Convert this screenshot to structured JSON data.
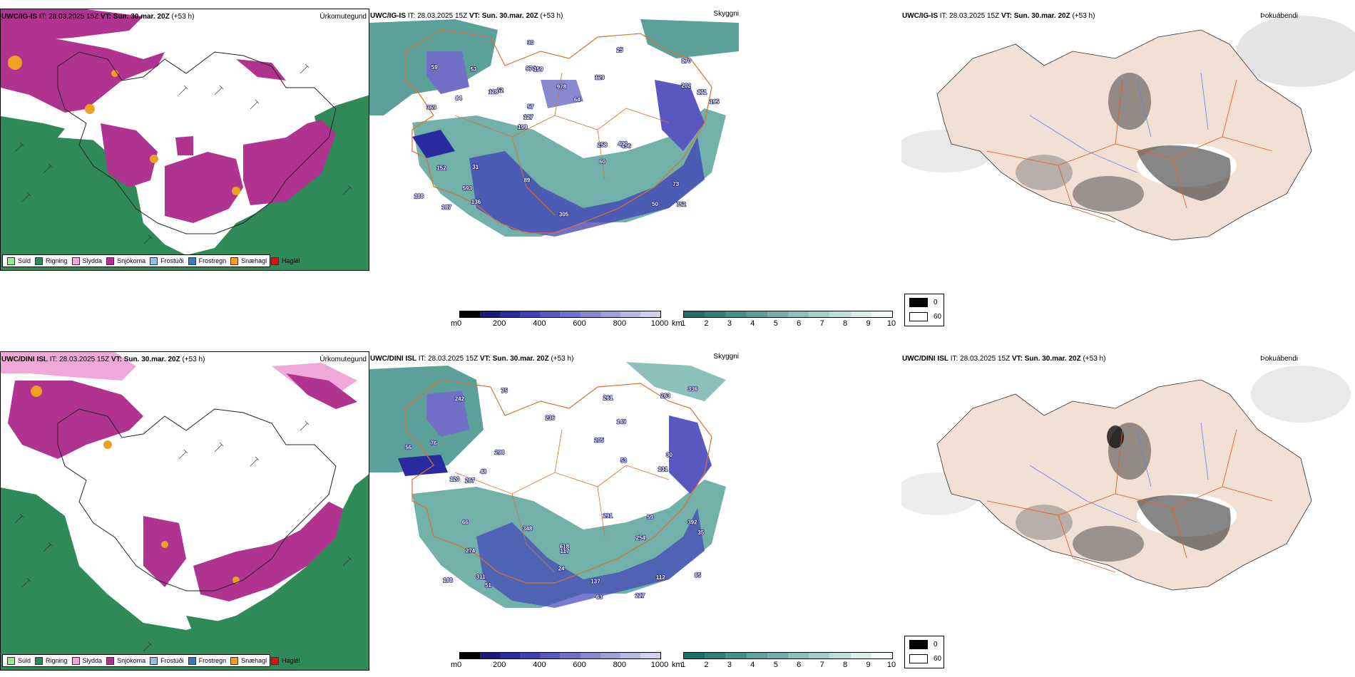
{
  "rows": [
    {
      "model": "UWC/IG-IS",
      "it_label": "IT:",
      "it_value": "28.03.2025 15Z",
      "vt_label": "VT:",
      "vt_value": "Sun. 30.mar. 20Z",
      "lead": "(+53 h)"
    },
    {
      "model": "UWC/DINI ISL",
      "it_label": "IT:",
      "it_value": "28.03.2025 15Z",
      "vt_label": "VT:",
      "vt_value": "Sun. 30.mar. 20Z",
      "lead": "(+53 h)"
    }
  ],
  "panel_titles": {
    "precip": "Úrkomutegund",
    "cloud": "Skyggni",
    "fog": "Þokuábendi"
  },
  "precip_legend": [
    {
      "label": "Súld",
      "color": "#98e898"
    },
    {
      "label": "Rigning",
      "color": "#2e8b57"
    },
    {
      "label": "Slydda",
      "color": "#f0a8d8"
    },
    {
      "label": "Snjókoma",
      "color": "#b0348f"
    },
    {
      "label": "Frostúði",
      "color": "#8ec0ee"
    },
    {
      "label": "Frostregn",
      "color": "#3a78c8"
    },
    {
      "label": "Snæhagl",
      "color": "#f0a020"
    },
    {
      "label": "Haglél",
      "color": "#e01010"
    }
  ],
  "height_bar": {
    "unit": "m",
    "ticks": [
      "0",
      "200",
      "400",
      "600",
      "800",
      "1000"
    ],
    "colors": [
      "#000000",
      "#1a1a7a",
      "#2a2aa0",
      "#4040b8",
      "#5858c0",
      "#7070c8",
      "#8888d0",
      "#a0a0d8",
      "#b8b8e4",
      "#d0d0ee"
    ]
  },
  "vis_bar": {
    "unit": "km",
    "ticks": [
      "1",
      "2",
      "3",
      "4",
      "5",
      "6",
      "7",
      "8",
      "9",
      "10"
    ],
    "colors": [
      "#1d6f6a",
      "#2f807b",
      "#449189",
      "#5ba199",
      "#72b1a9",
      "#8bc1ba",
      "#a4d0ca",
      "#bfdfdb",
      "#d9eeeb",
      "#f3faf9"
    ]
  },
  "fog_key": [
    {
      "label": "0",
      "color": "#000000"
    },
    {
      "label": "60",
      "color": "#ffffff"
    }
  ],
  "cloud_labels": {
    "top": [
      "752",
      "369",
      "170",
      "199",
      "129",
      "187",
      "974",
      "978",
      "152",
      "52",
      "188",
      "593",
      "159",
      "64",
      "496",
      "59",
      "30",
      "195",
      "258",
      "202",
      "127",
      "89",
      "57",
      "53",
      "25",
      "31",
      "50",
      "73",
      "400",
      "305",
      "128",
      "84",
      "60",
      "136",
      "171"
    ],
    "bottom": [
      "392",
      "227",
      "117",
      "188",
      "618",
      "298",
      "75",
      "149",
      "63",
      "131",
      "291",
      "263",
      "56",
      "53",
      "51",
      "242",
      "274",
      "311",
      "261",
      "236",
      "76",
      "59",
      "112",
      "120",
      "336",
      "205",
      "254",
      "348",
      "66",
      "48",
      "24",
      "30",
      "85",
      "137",
      "35",
      "267"
    ]
  }
}
